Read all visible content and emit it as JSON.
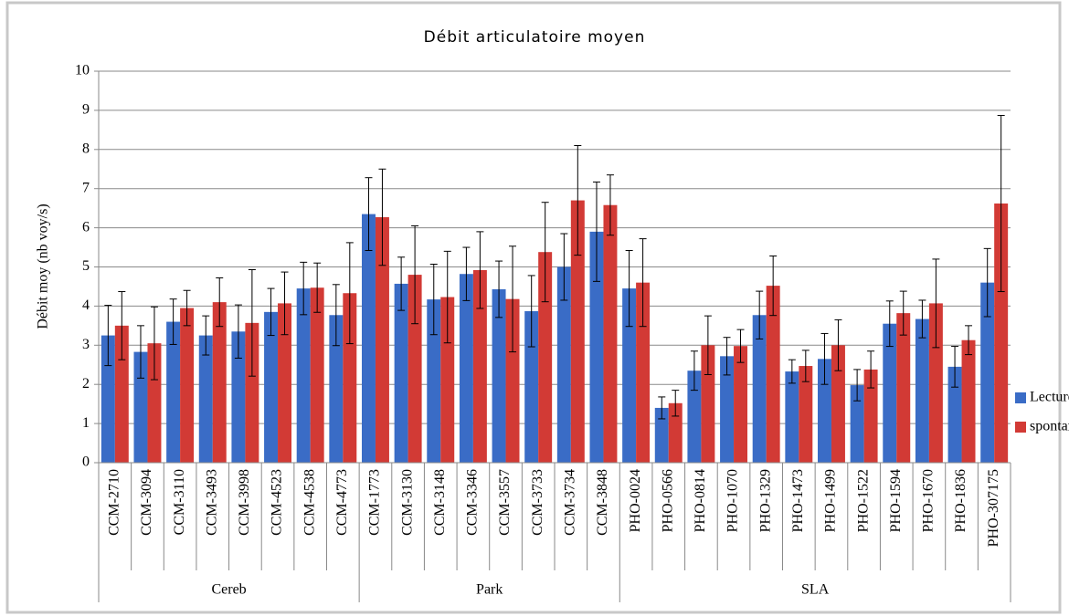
{
  "chart_data": {
    "type": "bar",
    "title": "Débit articulatoire moyen",
    "y_label": "Débit moy (nb voy/s)",
    "groups": [
      {
        "name": "Cereb",
        "categories": [
          "CCM-2710",
          "CCM-3094",
          "CCM-3110",
          "CCM-3493",
          "CCM-3998",
          "CCM-4523",
          "CCM-4538",
          "CCM-4773"
        ]
      },
      {
        "name": "Park",
        "categories": [
          "CCM-1773",
          "CCM-3130",
          "CCM-3148",
          "CCM-3346",
          "CCM-3557",
          "CCM-3733",
          "CCM-3734",
          "CCM-3848"
        ]
      },
      {
        "name": "SLA",
        "categories": [
          "PHO-0024",
          "PHO-0566",
          "PHO-0814",
          "PHO-1070",
          "PHO-1329",
          "PHO-1473",
          "PHO-1499",
          "PHO-1522",
          "PHO-1594",
          "PHO-1670",
          "PHO-1836",
          "PHO-307175"
        ]
      }
    ],
    "series": [
      {
        "name": "Lecture",
        "color": "#3a6cc6",
        "values": [
          3.25,
          2.83,
          3.6,
          3.25,
          3.35,
          3.85,
          4.45,
          3.77,
          6.35,
          4.57,
          4.17,
          4.82,
          4.43,
          3.87,
          5.0,
          5.9,
          4.45,
          1.4,
          2.35,
          2.72,
          3.77,
          2.33,
          2.65,
          1.98,
          3.55,
          3.67,
          2.45,
          4.6
        ],
        "errors": [
          0.77,
          0.67,
          0.58,
          0.5,
          0.68,
          0.6,
          0.67,
          0.78,
          0.93,
          0.68,
          0.9,
          0.68,
          0.72,
          0.91,
          0.85,
          1.27,
          0.97,
          0.28,
          0.5,
          0.48,
          0.61,
          0.3,
          0.65,
          0.4,
          0.58,
          0.48,
          0.52,
          0.87
        ]
      },
      {
        "name": "spontané",
        "color": "#d23a35",
        "values": [
          3.5,
          3.05,
          3.95,
          4.1,
          3.57,
          4.07,
          4.47,
          4.33,
          6.27,
          4.8,
          4.23,
          4.92,
          4.18,
          5.38,
          6.7,
          6.58,
          4.6,
          1.52,
          3.0,
          2.98,
          4.52,
          2.47,
          3.0,
          2.38,
          3.82,
          4.07,
          3.13,
          6.62
        ],
        "errors": [
          0.87,
          0.93,
          0.45,
          0.62,
          1.36,
          0.8,
          0.63,
          1.29,
          1.23,
          1.25,
          1.17,
          0.98,
          1.35,
          1.27,
          1.4,
          0.77,
          1.12,
          0.33,
          0.75,
          0.42,
          0.76,
          0.4,
          0.65,
          0.47,
          0.56,
          1.13,
          0.37,
          2.25
        ]
      }
    ],
    "ylim": [
      0,
      10
    ],
    "yticks": [
      0,
      1,
      2,
      3,
      4,
      5,
      6,
      7,
      8,
      9,
      10
    ],
    "grid": true,
    "legend": "right"
  }
}
